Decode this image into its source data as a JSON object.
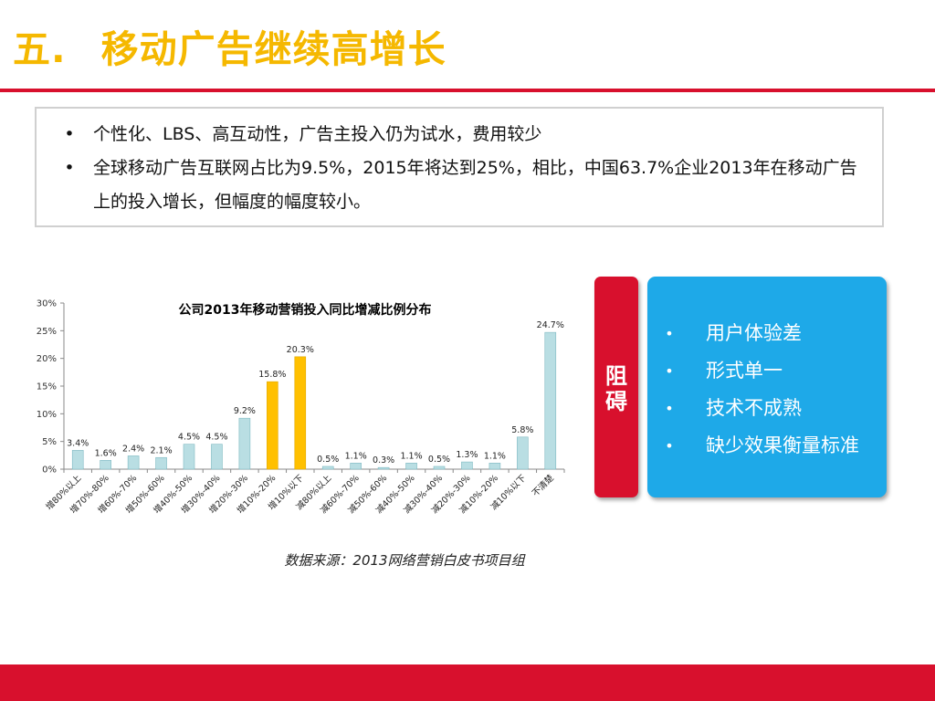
{
  "header": {
    "number": "五.",
    "title": "移动广告继续高增长"
  },
  "bullets": [
    "个性化、LBS、高互动性，广告主投入仍为试水，费用较少",
    "全球移动广告互联网占比为9.5%，2015年将达到25%，相比，中国63.7%企业2013年在移动广告上的投入增长，但幅度的幅度较小。"
  ],
  "bullet_symbol": "•",
  "barrier": {
    "label_line1": "阻",
    "label_line2": "碍",
    "items": [
      "用户体验差",
      "形式单一",
      "技术不成熟",
      "缺少效果衡量标准"
    ]
  },
  "source": "数据来源：2013网络营销白皮书项目组",
  "colors": {
    "title": "#F5B800",
    "accent_red": "#D8102D",
    "panel_blue": "#1EA9E8",
    "bar_default": "#B9DEE3",
    "bar_highlight": "#FFC000"
  },
  "chart_data": {
    "type": "bar",
    "title": "公司2013年移动营销投入同比增减比例分布",
    "categories": [
      "增80%以上",
      "增70%-80%",
      "增60%-70%",
      "增50%-60%",
      "增40%-50%",
      "增30%-40%",
      "增20%-30%",
      "增10%-20%",
      "增10%以下",
      "减80%以上",
      "减60%-70%",
      "减50%-60%",
      "减40%-50%",
      "减30%-40%",
      "减20%-30%",
      "减10%-20%",
      "减10%以下",
      "不清楚"
    ],
    "values": [
      3.4,
      1.6,
      2.4,
      2.1,
      4.5,
      4.5,
      9.2,
      15.8,
      20.3,
      0.5,
      1.1,
      0.3,
      1.1,
      0.5,
      1.3,
      1.1,
      5.8,
      24.7
    ],
    "value_labels": [
      "3.4%",
      "1.6%",
      "2.4%",
      "2.1%",
      "4.5%",
      "4.5%",
      "9.2%",
      "15.8%",
      "20.3%",
      "0.5%",
      "1.1%",
      "0.3%",
      "1.1%",
      "0.5%",
      "1.3%",
      "1.1%",
      "5.8%",
      "24.7%"
    ],
    "highlight": [
      7,
      8
    ],
    "y_ticks": [
      0,
      5,
      10,
      15,
      20,
      25,
      30
    ],
    "y_tick_labels": [
      "0%",
      "5%",
      "10%",
      "15%",
      "20%",
      "25%",
      "30%"
    ],
    "ylim": [
      0,
      30
    ],
    "grid": false,
    "legend": "none"
  }
}
